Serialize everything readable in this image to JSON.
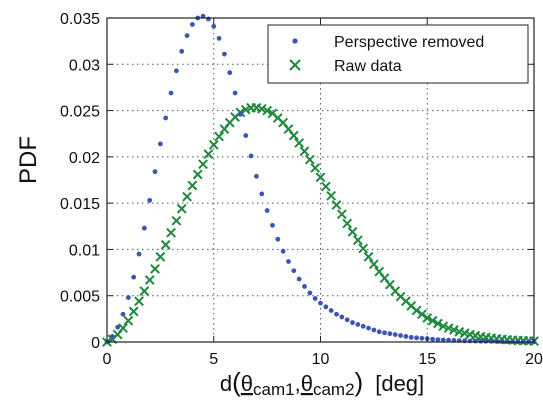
{
  "chart_data": {
    "type": "scatter",
    "ylabel": "PDF",
    "xlabel": {
      "prefix": "d",
      "theta1": "θ",
      "sub1": "cam1",
      "sep": ",",
      "theta2": "θ",
      "sub2": "cam2",
      "unit": "[deg]"
    },
    "xlim": [
      0,
      20
    ],
    "ylim": [
      0,
      0.035
    ],
    "x_ticks": [
      0,
      5,
      10,
      15,
      20
    ],
    "x_tick_labels": [
      "0",
      "5",
      "10",
      "15",
      "20"
    ],
    "y_ticks": [
      0,
      0.005,
      0.01,
      0.015,
      0.02,
      0.025,
      0.03,
      0.035
    ],
    "y_tick_labels": [
      "0",
      "0.005",
      "0.01",
      "0.015",
      "0.02",
      "0.025",
      "0.03",
      "0.035"
    ],
    "grid": true,
    "legend_position": "top-right",
    "series": [
      {
        "name": "Perspective removed",
        "marker": "dot",
        "color": "#3a55b4",
        "x": [
          0.0,
          0.25,
          0.5,
          0.75,
          1.0,
          1.25,
          1.5,
          1.75,
          2.0,
          2.25,
          2.5,
          2.75,
          3.0,
          3.25,
          3.5,
          3.75,
          4.0,
          4.25,
          4.5,
          4.75,
          5.0,
          5.25,
          5.5,
          5.75,
          6.0,
          6.25,
          6.5,
          6.75,
          7.0,
          7.25,
          7.5,
          7.75,
          8.0,
          8.25,
          8.5,
          8.75,
          9.0,
          9.25,
          9.5,
          9.75,
          10.0,
          10.25,
          10.5,
          10.75,
          11.0,
          11.25,
          11.5,
          11.75,
          12.0,
          12.25,
          12.5,
          12.75,
          13.0,
          13.25,
          13.5,
          13.75,
          14.0,
          14.25,
          14.5,
          14.75,
          15.0,
          15.25,
          15.5,
          15.75,
          16.0,
          16.25,
          16.5,
          16.75,
          17.0,
          17.25,
          17.5,
          17.75,
          18.0,
          18.25,
          18.5,
          18.75,
          19.0,
          19.25,
          19.5,
          19.75,
          20.0
        ],
        "y": [
          0.0,
          0.0006,
          0.0016,
          0.003,
          0.0048,
          0.007,
          0.0095,
          0.0123,
          0.0153,
          0.0184,
          0.0214,
          0.0242,
          0.0269,
          0.0293,
          0.0314,
          0.0331,
          0.0343,
          0.035,
          0.0352,
          0.0349,
          0.0341,
          0.0328,
          0.0311,
          0.0291,
          0.0269,
          0.0246,
          0.0223,
          0.0201,
          0.0179,
          0.016,
          0.0142,
          0.0126,
          0.0111,
          0.0098,
          0.0087,
          0.0077,
          0.0068,
          0.006,
          0.0053,
          0.0047,
          0.0042,
          0.0038,
          0.0034,
          0.003,
          0.0027,
          0.0024,
          0.0021,
          0.0019,
          0.0017,
          0.0015,
          0.0013,
          0.0011,
          0.001,
          0.0009,
          0.0008,
          0.0007,
          0.0006,
          0.0005,
          0.00045,
          0.0004,
          0.00035,
          0.0003,
          0.00026,
          0.00022,
          0.0002,
          0.00017,
          0.00015,
          0.00013,
          0.00011,
          0.0001,
          9e-05,
          8e-05,
          7e-05,
          6e-05,
          5e-05,
          4e-05,
          4e-05,
          3e-05,
          3e-05,
          2e-05,
          2e-05
        ]
      },
      {
        "name": "Raw data",
        "marker": "x",
        "color": "#1f8a3c",
        "x": [
          0.0,
          0.25,
          0.5,
          0.75,
          1.0,
          1.25,
          1.5,
          1.75,
          2.0,
          2.25,
          2.5,
          2.75,
          3.0,
          3.25,
          3.5,
          3.75,
          4.0,
          4.25,
          4.5,
          4.75,
          5.0,
          5.25,
          5.5,
          5.75,
          6.0,
          6.25,
          6.5,
          6.75,
          7.0,
          7.25,
          7.5,
          7.75,
          8.0,
          8.25,
          8.5,
          8.75,
          9.0,
          9.25,
          9.5,
          9.75,
          10.0,
          10.25,
          10.5,
          10.75,
          11.0,
          11.25,
          11.5,
          11.75,
          12.0,
          12.25,
          12.5,
          12.75,
          13.0,
          13.25,
          13.5,
          13.75,
          14.0,
          14.25,
          14.5,
          14.75,
          15.0,
          15.25,
          15.5,
          15.75,
          16.0,
          16.25,
          16.5,
          16.75,
          17.0,
          17.25,
          17.5,
          17.75,
          18.0,
          18.25,
          18.5,
          18.75,
          19.0,
          19.25,
          19.5,
          19.75,
          20.0
        ],
        "y": [
          0.0,
          0.0003,
          0.0008,
          0.0015,
          0.0023,
          0.0033,
          0.0044,
          0.0055,
          0.0067,
          0.0079,
          0.0092,
          0.0105,
          0.0118,
          0.0131,
          0.0144,
          0.0157,
          0.0169,
          0.0181,
          0.0192,
          0.0203,
          0.0213,
          0.0222,
          0.023,
          0.0237,
          0.0243,
          0.0248,
          0.0251,
          0.0253,
          0.0253,
          0.0252,
          0.025,
          0.0247,
          0.0242,
          0.0237,
          0.023,
          0.0223,
          0.0215,
          0.0206,
          0.0197,
          0.0188,
          0.0178,
          0.0168,
          0.0158,
          0.0148,
          0.0138,
          0.0128,
          0.0119,
          0.011,
          0.0101,
          0.0092,
          0.0084,
          0.0076,
          0.0069,
          0.0062,
          0.0055,
          0.0049,
          0.0044,
          0.0039,
          0.0034,
          0.003,
          0.0026,
          0.0023,
          0.002,
          0.0017,
          0.0015,
          0.0013,
          0.0011,
          0.00095,
          0.0008,
          0.00068,
          0.00058,
          0.00049,
          0.00041,
          0.00035,
          0.00029,
          0.00024,
          0.0002,
          0.00017,
          0.00014,
          0.00012,
          0.0001
        ]
      }
    ]
  }
}
